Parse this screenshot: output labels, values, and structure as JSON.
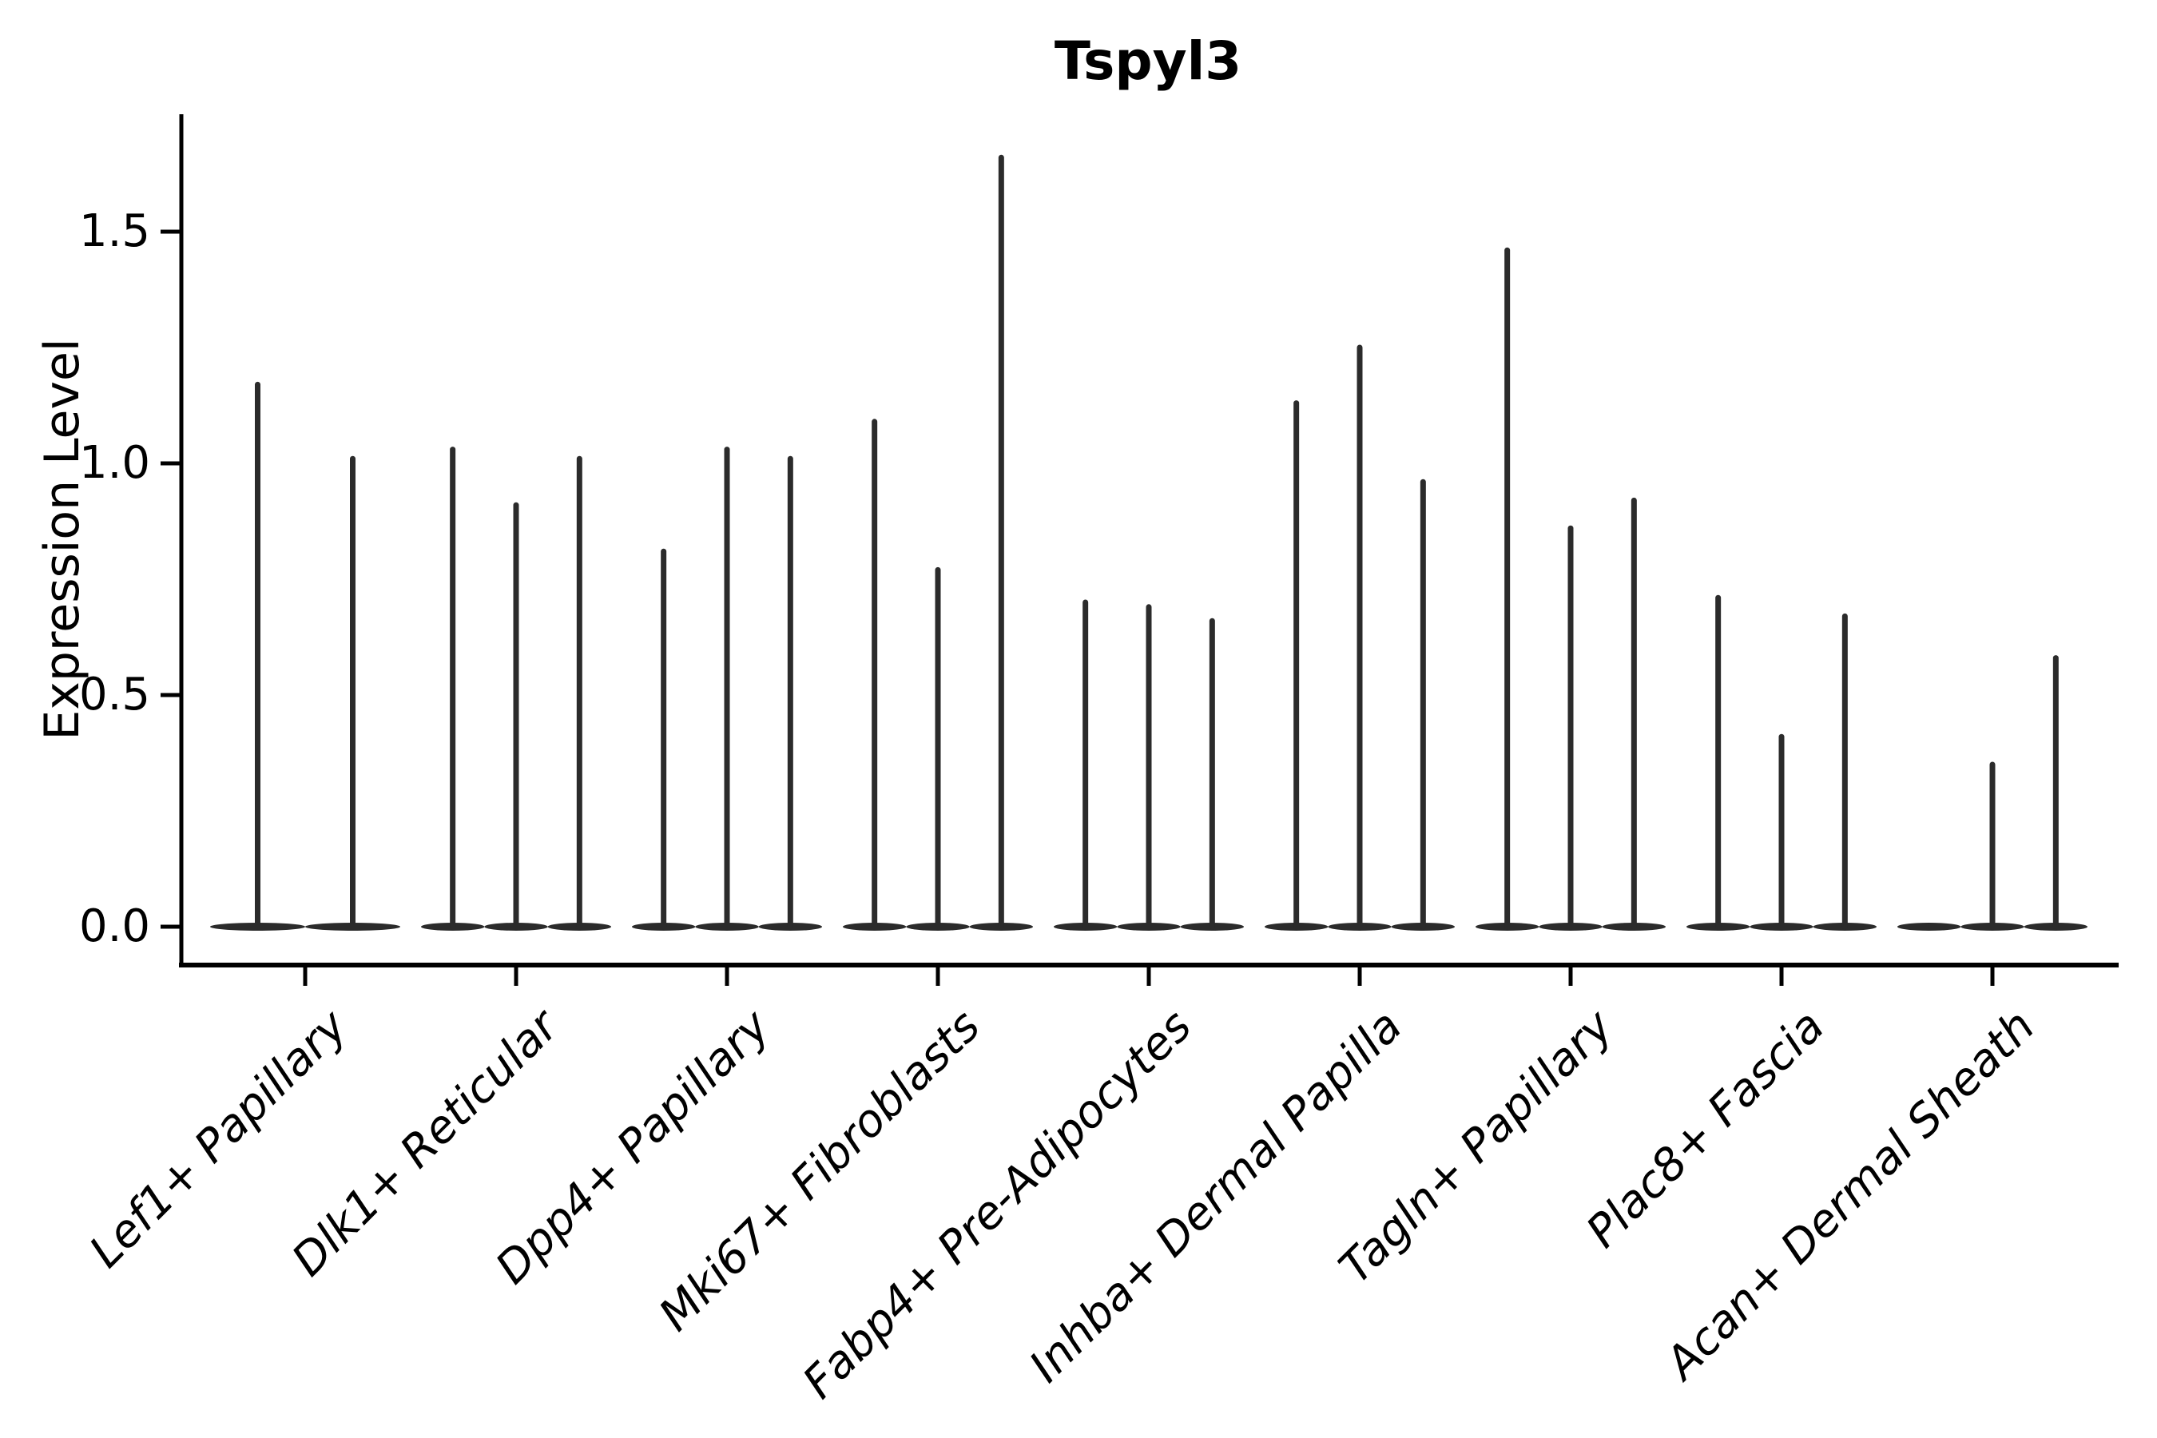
{
  "chart_data": {
    "type": "violin",
    "title": "Tspyl3",
    "ylabel": "Expression Level",
    "xlabel": "",
    "ylim": [
      0,
      1.78
    ],
    "yticks": [
      0.0,
      0.5,
      1.0,
      1.5
    ],
    "ytick_labels": [
      "0.0",
      "0.5",
      "1.0",
      "1.5"
    ],
    "grid": false,
    "legend": null,
    "style_note": "sparse single-cell expression violins: each violin is a wide flat base at y=0 with a single thin density spike rising to its maximum value; violins per category sit side by side and their bases merge",
    "categories": [
      "Lef1+ Papillary",
      "Dlk1+ Reticular",
      "Dpp4+ Papillary",
      "Mki67+ Fibroblasts",
      "Fabp4+ Pre-Adipocytes",
      "Inhba+ Dermal Papilla",
      "Tagln+ Papillary",
      "Plac8+ Fascia",
      "Acan+ Dermal Sheath"
    ],
    "groups": [
      {
        "category": "Lef1+ Papillary",
        "violin_max_values": [
          1.17,
          1.01
        ]
      },
      {
        "category": "Dlk1+ Reticular",
        "violin_max_values": [
          1.03,
          0.91,
          1.01
        ]
      },
      {
        "category": "Dpp4+ Papillary",
        "violin_max_values": [
          0.81,
          1.03,
          1.01
        ]
      },
      {
        "category": "Mki67+ Fibroblasts",
        "violin_max_values": [
          1.09,
          0.77,
          1.66
        ]
      },
      {
        "category": "Fabp4+ Pre-Adipocytes",
        "violin_max_values": [
          0.7,
          0.69,
          0.66
        ]
      },
      {
        "category": "Inhba+ Dermal Papilla",
        "violin_max_values": [
          1.13,
          1.25,
          0.96
        ]
      },
      {
        "category": "Tagln+ Papillary",
        "violin_max_values": [
          1.46,
          0.86,
          0.92
        ]
      },
      {
        "category": "Plac8+ Fascia",
        "violin_max_values": [
          0.71,
          0.41,
          0.67
        ]
      },
      {
        "category": "Acan+ Dermal Sheath",
        "violin_max_values": [
          0.0,
          0.35,
          0.58
        ]
      }
    ],
    "colors": {
      "violin": "#2b2b2b",
      "axis": "#000000",
      "text": "#000000",
      "background": "#ffffff"
    }
  }
}
